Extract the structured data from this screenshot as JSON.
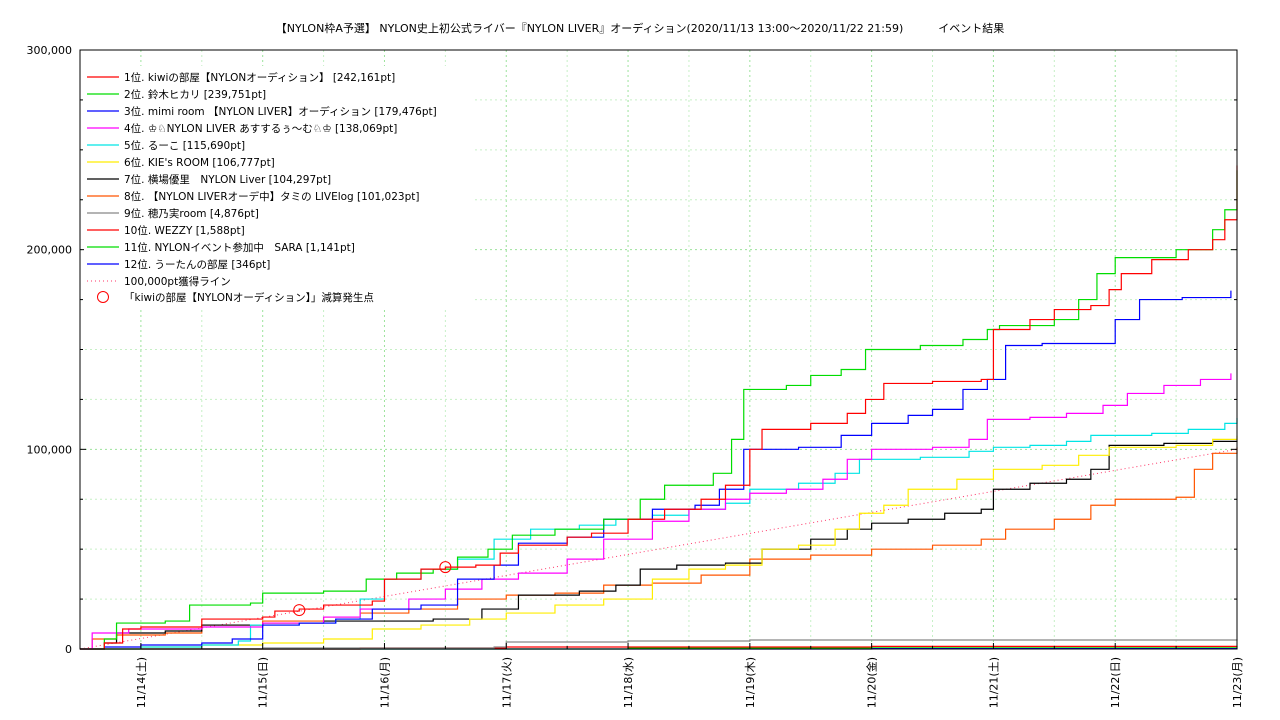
{
  "chart_data": {
    "type": "line",
    "title": "【NYLON枠A予選】 NYLON史上初公式ライバー『NYLON LIVER』オーディション(2020/11/13 13:00〜2020/11/22 21:59)          イベント結果",
    "xlabel": "",
    "ylabel": "",
    "x_ticks": [
      "11/14(土)",
      "11/15(日)",
      "11/16(月)",
      "11/17(火)",
      "11/18(水)",
      "11/19(木)",
      "11/20(金)",
      "11/21(土)",
      "11/22(日)",
      "11/23(月)"
    ],
    "xlim_days": [
      13.5,
      23.0
    ],
    "ylim": [
      0,
      300000
    ],
    "y_ticks": [
      "0",
      "100,000",
      "200,000",
      "300,000"
    ],
    "grid": true,
    "legend_position": "top-left",
    "series": [
      {
        "name": "1位. kiwiの部屋【NYLONオーディション】 [242,161pt]",
        "color": "#ff0000",
        "points": [
          [
            13.5,
            0
          ],
          [
            13.7,
            3000
          ],
          [
            13.85,
            10000
          ],
          [
            14.0,
            11000
          ],
          [
            14.5,
            15000
          ],
          [
            15.0,
            16000
          ],
          [
            15.1,
            19000
          ],
          [
            15.3,
            20000
          ],
          [
            15.5,
            22000
          ],
          [
            15.9,
            24000
          ],
          [
            16.0,
            35000
          ],
          [
            16.3,
            40000
          ],
          [
            16.5,
            41000
          ],
          [
            16.75,
            42000
          ],
          [
            16.95,
            48000
          ],
          [
            17.1,
            52000
          ],
          [
            17.5,
            56000
          ],
          [
            17.7,
            58000
          ],
          [
            18.0,
            65000
          ],
          [
            18.3,
            70000
          ],
          [
            18.6,
            75000
          ],
          [
            18.8,
            82000
          ],
          [
            19.0,
            100000
          ],
          [
            19.1,
            110000
          ],
          [
            19.5,
            113000
          ],
          [
            19.8,
            118000
          ],
          [
            19.95,
            125000
          ],
          [
            20.1,
            133000
          ],
          [
            20.5,
            134000
          ],
          [
            20.9,
            135000
          ],
          [
            21.0,
            160000
          ],
          [
            21.3,
            165000
          ],
          [
            21.5,
            170000
          ],
          [
            21.8,
            172000
          ],
          [
            21.95,
            180000
          ],
          [
            22.05,
            188000
          ],
          [
            22.3,
            195000
          ],
          [
            22.6,
            200000
          ],
          [
            22.8,
            205000
          ],
          [
            22.9,
            215000
          ],
          [
            23.0,
            242161
          ]
        ]
      },
      {
        "name": "2位. 鈴木ヒカリ [239,751pt]",
        "color": "#00dd00",
        "points": [
          [
            13.5,
            0
          ],
          [
            13.7,
            5000
          ],
          [
            13.8,
            13000
          ],
          [
            14.2,
            14000
          ],
          [
            14.4,
            22000
          ],
          [
            14.9,
            23000
          ],
          [
            15.0,
            28000
          ],
          [
            15.5,
            29000
          ],
          [
            15.85,
            35000
          ],
          [
            16.1,
            38000
          ],
          [
            16.4,
            40000
          ],
          [
            16.6,
            46000
          ],
          [
            16.85,
            50000
          ],
          [
            17.05,
            57000
          ],
          [
            17.4,
            60000
          ],
          [
            17.8,
            65000
          ],
          [
            18.1,
            75000
          ],
          [
            18.3,
            82000
          ],
          [
            18.7,
            88000
          ],
          [
            18.85,
            105000
          ],
          [
            18.95,
            130000
          ],
          [
            19.3,
            132000
          ],
          [
            19.5,
            137000
          ],
          [
            19.75,
            140000
          ],
          [
            19.95,
            150000
          ],
          [
            20.4,
            152000
          ],
          [
            20.75,
            155000
          ],
          [
            20.95,
            160000
          ],
          [
            21.05,
            162000
          ],
          [
            21.5,
            165000
          ],
          [
            21.7,
            175000
          ],
          [
            21.85,
            188000
          ],
          [
            22.0,
            196000
          ],
          [
            22.5,
            200000
          ],
          [
            22.8,
            210000
          ],
          [
            22.9,
            220000
          ],
          [
            23.0,
            239751
          ]
        ]
      },
      {
        "name": "3位. mimi room 【NYLON LIVER】オーディション [179,476pt]",
        "color": "#0000ff",
        "points": [
          [
            13.5,
            0
          ],
          [
            13.7,
            1000
          ],
          [
            14.0,
            2000
          ],
          [
            14.5,
            3000
          ],
          [
            14.75,
            5000
          ],
          [
            15.0,
            12000
          ],
          [
            15.3,
            13000
          ],
          [
            15.6,
            15000
          ],
          [
            15.9,
            20000
          ],
          [
            16.3,
            22000
          ],
          [
            16.6,
            35000
          ],
          [
            16.9,
            42000
          ],
          [
            17.1,
            53000
          ],
          [
            17.5,
            56000
          ],
          [
            17.8,
            65000
          ],
          [
            18.2,
            70000
          ],
          [
            18.55,
            72000
          ],
          [
            18.75,
            80000
          ],
          [
            18.95,
            100000
          ],
          [
            19.4,
            101000
          ],
          [
            19.75,
            107000
          ],
          [
            20.0,
            113000
          ],
          [
            20.3,
            117000
          ],
          [
            20.5,
            120000
          ],
          [
            20.75,
            130000
          ],
          [
            20.95,
            135000
          ],
          [
            21.1,
            152000
          ],
          [
            21.4,
            153000
          ],
          [
            21.8,
            153000
          ],
          [
            22.0,
            165000
          ],
          [
            22.2,
            175000
          ],
          [
            22.55,
            176000
          ],
          [
            22.95,
            179476
          ]
        ]
      },
      {
        "name": "4位. ♔♘NYLON LIVER あすするぅ〜む♘♔ [138,069pt]",
        "color": "#ff00ff",
        "points": [
          [
            13.5,
            0
          ],
          [
            13.6,
            8000
          ],
          [
            13.9,
            10000
          ],
          [
            14.5,
            11000
          ],
          [
            15.0,
            13000
          ],
          [
            15.5,
            16000
          ],
          [
            15.8,
            20000
          ],
          [
            16.2,
            25000
          ],
          [
            16.5,
            30000
          ],
          [
            16.8,
            35000
          ],
          [
            17.1,
            38000
          ],
          [
            17.5,
            45000
          ],
          [
            17.8,
            55000
          ],
          [
            18.2,
            64000
          ],
          [
            18.5,
            70000
          ],
          [
            18.8,
            75000
          ],
          [
            19.0,
            78000
          ],
          [
            19.3,
            80000
          ],
          [
            19.6,
            85000
          ],
          [
            19.8,
            95000
          ],
          [
            20.0,
            100000
          ],
          [
            20.5,
            101000
          ],
          [
            20.8,
            105000
          ],
          [
            20.95,
            115000
          ],
          [
            21.3,
            116000
          ],
          [
            21.6,
            118000
          ],
          [
            21.9,
            122000
          ],
          [
            22.1,
            128000
          ],
          [
            22.4,
            132000
          ],
          [
            22.7,
            135000
          ],
          [
            22.95,
            138069
          ]
        ]
      },
      {
        "name": "5位. るーこ [115,690pt]",
        "color": "#00e5e5",
        "points": [
          [
            13.5,
            0
          ],
          [
            14.0,
            1000
          ],
          [
            14.5,
            2000
          ],
          [
            14.8,
            4000
          ],
          [
            14.9,
            12000
          ],
          [
            15.3,
            13000
          ],
          [
            15.6,
            15000
          ],
          [
            15.8,
            25000
          ],
          [
            16.0,
            35000
          ],
          [
            16.3,
            40000
          ],
          [
            16.6,
            45000
          ],
          [
            16.9,
            55000
          ],
          [
            17.2,
            60000
          ],
          [
            17.6,
            62000
          ],
          [
            17.9,
            65000
          ],
          [
            18.2,
            67000
          ],
          [
            18.5,
            70000
          ],
          [
            18.8,
            73000
          ],
          [
            19.0,
            80000
          ],
          [
            19.4,
            83000
          ],
          [
            19.7,
            88000
          ],
          [
            19.9,
            95000
          ],
          [
            20.4,
            96000
          ],
          [
            20.8,
            99000
          ],
          [
            21.0,
            101000
          ],
          [
            21.3,
            102000
          ],
          [
            21.6,
            104000
          ],
          [
            21.8,
            107000
          ],
          [
            22.3,
            108000
          ],
          [
            22.6,
            110000
          ],
          [
            22.9,
            113000
          ],
          [
            23.0,
            115690
          ]
        ]
      },
      {
        "name": "6位. KIE's ROOM [106,777pt]",
        "color": "#ffee00",
        "points": [
          [
            13.5,
            0
          ],
          [
            14.0,
            1000
          ],
          [
            14.5,
            2000
          ],
          [
            15.0,
            3000
          ],
          [
            15.5,
            5000
          ],
          [
            15.9,
            10000
          ],
          [
            16.3,
            12000
          ],
          [
            16.7,
            15000
          ],
          [
            17.0,
            18000
          ],
          [
            17.4,
            22000
          ],
          [
            17.8,
            25000
          ],
          [
            18.2,
            35000
          ],
          [
            18.5,
            40000
          ],
          [
            18.8,
            42000
          ],
          [
            19.1,
            50000
          ],
          [
            19.4,
            52000
          ],
          [
            19.7,
            60000
          ],
          [
            19.9,
            68000
          ],
          [
            20.1,
            72000
          ],
          [
            20.3,
            80000
          ],
          [
            20.7,
            85000
          ],
          [
            21.0,
            90000
          ],
          [
            21.4,
            92000
          ],
          [
            21.7,
            97000
          ],
          [
            21.95,
            101000
          ],
          [
            22.5,
            102000
          ],
          [
            22.8,
            105000
          ],
          [
            23.0,
            106777
          ]
        ]
      },
      {
        "name": "7位. 横場優里　NYLON Liver [104,297pt]",
        "color": "#000000",
        "points": [
          [
            13.5,
            0
          ],
          [
            13.7,
            3000
          ],
          [
            13.8,
            8000
          ],
          [
            14.2,
            9000
          ],
          [
            14.5,
            12000
          ],
          [
            15.0,
            13000
          ],
          [
            15.5,
            14000
          ],
          [
            16.0,
            14000
          ],
          [
            16.4,
            15000
          ],
          [
            16.8,
            20000
          ],
          [
            17.1,
            27000
          ],
          [
            17.6,
            29000
          ],
          [
            17.9,
            32000
          ],
          [
            18.1,
            40000
          ],
          [
            18.4,
            42000
          ],
          [
            18.8,
            43000
          ],
          [
            19.1,
            50000
          ],
          [
            19.5,
            55000
          ],
          [
            19.8,
            60000
          ],
          [
            20.0,
            63000
          ],
          [
            20.3,
            65000
          ],
          [
            20.6,
            68000
          ],
          [
            20.9,
            70000
          ],
          [
            21.0,
            80000
          ],
          [
            21.3,
            83000
          ],
          [
            21.6,
            85000
          ],
          [
            21.8,
            90000
          ],
          [
            21.95,
            102000
          ],
          [
            22.4,
            103000
          ],
          [
            22.8,
            104000
          ],
          [
            23.0,
            104297
          ]
        ]
      },
      {
        "name": "8位. 【NYLON LIVERオーデ中】タミの LIVElog [101,023pt]",
        "color": "#ff5500",
        "points": [
          [
            13.5,
            0
          ],
          [
            13.6,
            5000
          ],
          [
            13.8,
            7000
          ],
          [
            14.2,
            8000
          ],
          [
            14.5,
            12000
          ],
          [
            15.0,
            14000
          ],
          [
            15.5,
            16000
          ],
          [
            15.8,
            18000
          ],
          [
            16.2,
            20000
          ],
          [
            16.6,
            25000
          ],
          [
            17.0,
            27000
          ],
          [
            17.4,
            28000
          ],
          [
            17.8,
            32000
          ],
          [
            18.2,
            33000
          ],
          [
            18.6,
            37000
          ],
          [
            19.0,
            45000
          ],
          [
            19.5,
            47000
          ],
          [
            20.0,
            50000
          ],
          [
            20.5,
            52000
          ],
          [
            20.9,
            55000
          ],
          [
            21.1,
            60000
          ],
          [
            21.5,
            65000
          ],
          [
            21.8,
            72000
          ],
          [
            22.0,
            75000
          ],
          [
            22.5,
            76000
          ],
          [
            22.65,
            90000
          ],
          [
            22.8,
            98000
          ],
          [
            23.0,
            101023
          ]
        ]
      },
      {
        "name": "9位. 穂乃実room [4,876pt]",
        "color": "#888888",
        "points": [
          [
            13.5,
            0
          ],
          [
            15.0,
            500
          ],
          [
            16.9,
            1000
          ],
          [
            17.0,
            3500
          ],
          [
            18.0,
            4000
          ],
          [
            19.0,
            4500
          ],
          [
            23.0,
            4876
          ]
        ]
      },
      {
        "name": "10位. WEZZY [1,588pt]",
        "color": "#ff0000",
        "points": [
          [
            13.5,
            0
          ],
          [
            15.8,
            500
          ],
          [
            17.0,
            1000
          ],
          [
            20.0,
            1300
          ],
          [
            23.0,
            1588
          ]
        ]
      },
      {
        "name": "11位. NYLONイベント参加中　SARA [1,141pt]",
        "color": "#00dd00",
        "points": [
          [
            13.5,
            0
          ],
          [
            18.0,
            500
          ],
          [
            20.0,
            900
          ],
          [
            23.0,
            1141
          ]
        ]
      },
      {
        "name": "12位. うーたんの部屋 [346pt]",
        "color": "#0000ff",
        "points": [
          [
            13.5,
            0
          ],
          [
            20.0,
            200
          ],
          [
            23.0,
            346
          ]
        ]
      }
    ],
    "reference_line": {
      "name": "100,000pt獲得ライン",
      "color": "#ff3366",
      "points": [
        [
          13.5,
          0
        ],
        [
          23.0,
          100000
        ]
      ]
    },
    "markers": {
      "name": "「kiwiの部屋【NYLONオーディション】」減算発生点",
      "color": "#ff0000",
      "points": [
        [
          15.3,
          19500
        ],
        [
          16.5,
          41000
        ]
      ]
    }
  }
}
